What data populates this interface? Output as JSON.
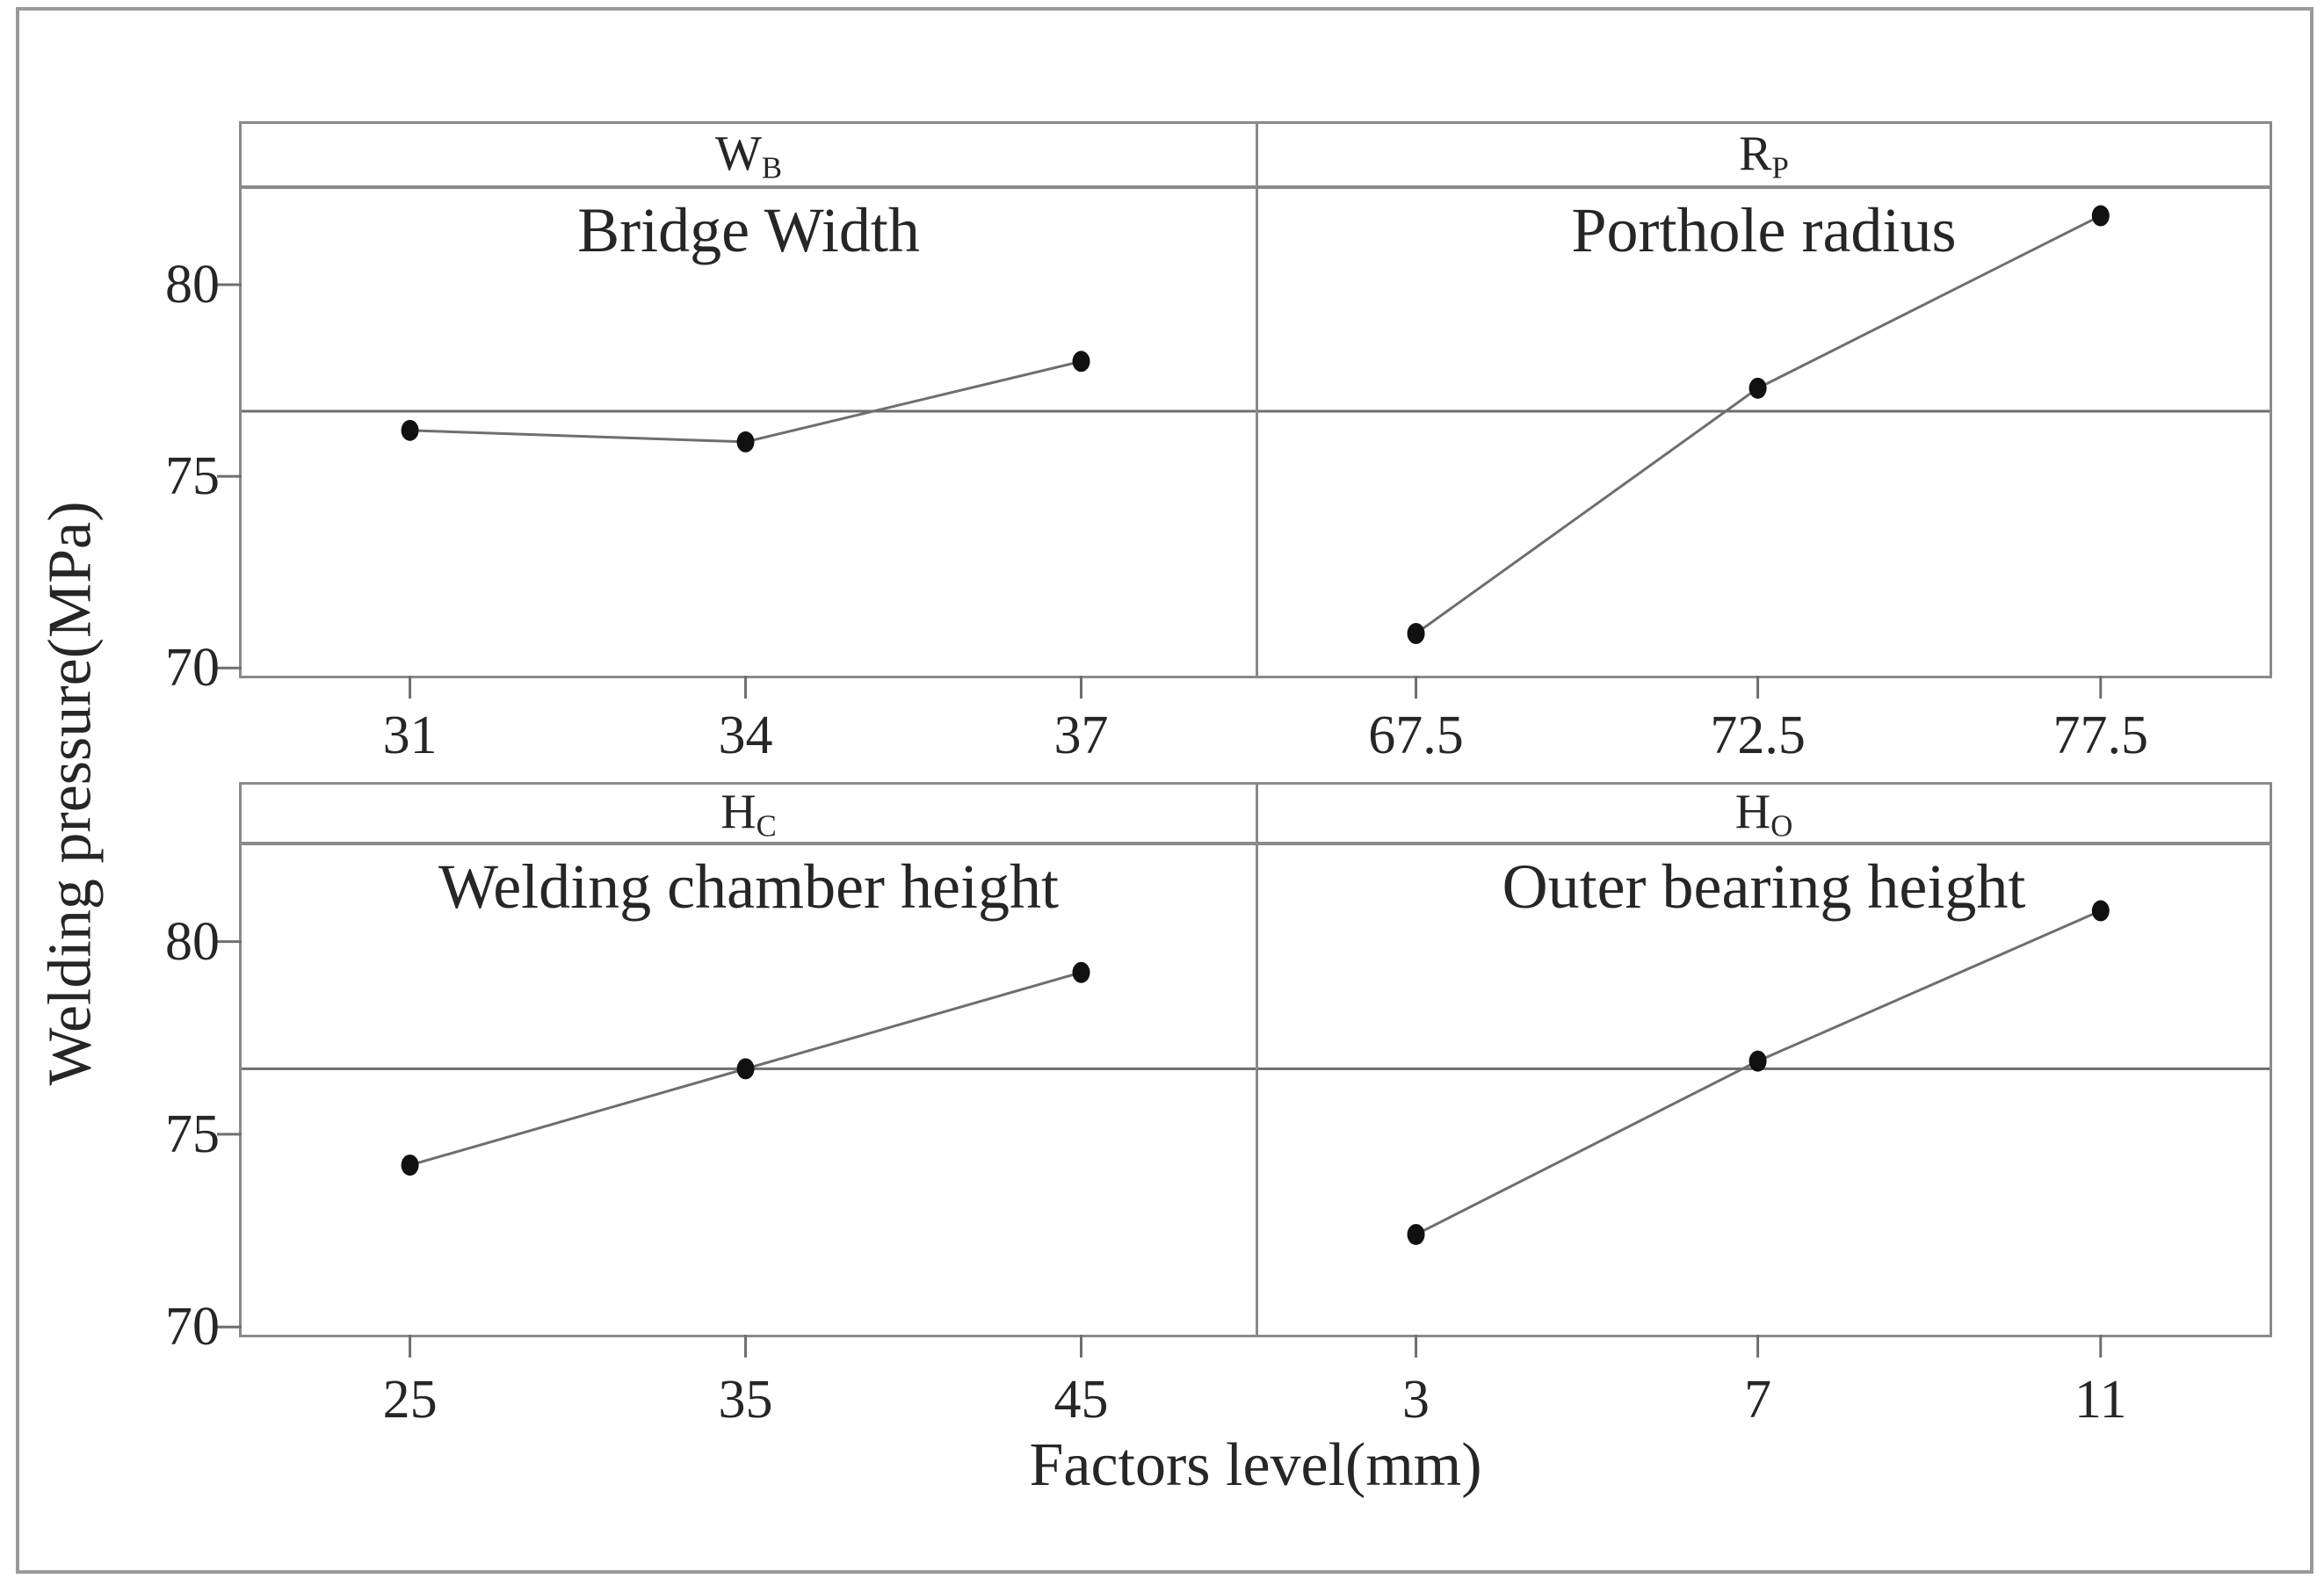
{
  "chart_data": {
    "type": "line",
    "description": "Main effects plot: four small-multiple panels sharing a welding-pressure y-axis",
    "ylabel": "Welding pressure(MPa)",
    "xlabel": "Factors level(mm)",
    "y_ticks": [
      80,
      75,
      70
    ],
    "y_tick_labels": [
      "80",
      "75",
      "70"
    ],
    "ylim": [
      69.8,
      82.5
    ],
    "mean_line": 76.7,
    "grid": "mean reference line only",
    "legend": "none",
    "panels": [
      {
        "strip_main": "W",
        "strip_sub": "B",
        "title": "Bridge Width",
        "x": [
          31,
          34,
          37
        ],
        "x_labels": [
          "31",
          "34",
          "37"
        ],
        "y": [
          76.2,
          75.9,
          78.0
        ]
      },
      {
        "strip_main": "R",
        "strip_sub": "P",
        "title": "Porthole radius",
        "x": [
          67.5,
          72.5,
          77.5
        ],
        "x_labels": [
          "67.5",
          "72.5",
          "77.5"
        ],
        "y": [
          70.9,
          77.3,
          81.8
        ]
      },
      {
        "strip_main": "H",
        "strip_sub": "C",
        "title": "Welding chamber height",
        "x": [
          25,
          35,
          45
        ],
        "x_labels": [
          "25",
          "35",
          "45"
        ],
        "y": [
          74.2,
          76.7,
          79.2
        ]
      },
      {
        "strip_main": "H",
        "strip_sub": "O",
        "title": "Outer bearing height",
        "x": [
          3,
          7,
          11
        ],
        "x_labels": [
          "3",
          "7",
          "11"
        ],
        "y": [
          72.4,
          76.9,
          80.8
        ]
      }
    ],
    "colors": {
      "background": "#ffffff",
      "text": "#262626",
      "line": "#6e6e6e",
      "marker": "#111111",
      "panel_border": "#8a8a8a",
      "frame_border": "#9a9a9a"
    }
  }
}
